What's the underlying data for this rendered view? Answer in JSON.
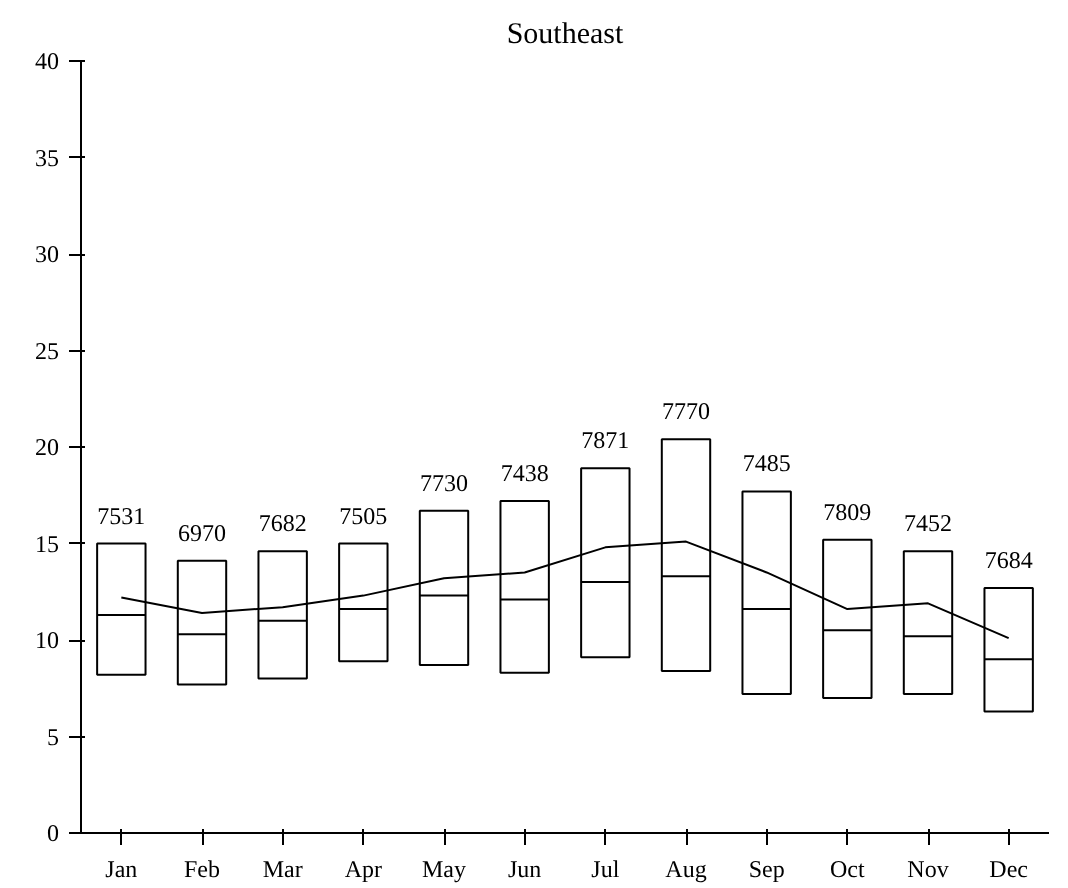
{
  "chart_data": {
    "type": "box",
    "title": "Southeast",
    "color": "#000000",
    "categories": [
      "Jan",
      "Feb",
      "Mar",
      "Apr",
      "May",
      "Jun",
      "Jul",
      "Aug",
      "Sep",
      "Oct",
      "Nov",
      "Dec"
    ],
    "boxes": [
      {
        "low": 8.2,
        "q1": 8.2,
        "median": 11.3,
        "q3": 15.0,
        "high": 15.0
      },
      {
        "low": 7.7,
        "q1": 7.7,
        "median": 10.3,
        "q3": 14.1,
        "high": 14.1
      },
      {
        "low": 8.0,
        "q1": 8.0,
        "median": 11.0,
        "q3": 14.6,
        "high": 14.6
      },
      {
        "low": 8.9,
        "q1": 8.9,
        "median": 11.6,
        "q3": 15.0,
        "high": 15.0
      },
      {
        "low": 8.7,
        "q1": 8.7,
        "median": 12.3,
        "q3": 16.7,
        "high": 16.7
      },
      {
        "low": 8.3,
        "q1": 8.3,
        "median": 12.1,
        "q3": 17.2,
        "high": 17.2
      },
      {
        "low": 9.1,
        "q1": 9.1,
        "median": 13.0,
        "q3": 18.9,
        "high": 18.9
      },
      {
        "low": 8.4,
        "q1": 8.4,
        "median": 13.3,
        "q3": 20.4,
        "high": 20.4
      },
      {
        "low": 7.2,
        "q1": 7.2,
        "median": 11.6,
        "q3": 17.7,
        "high": 17.7
      },
      {
        "low": 7.0,
        "q1": 7.0,
        "median": 10.5,
        "q3": 15.2,
        "high": 15.2
      },
      {
        "low": 7.2,
        "q1": 7.2,
        "median": 10.2,
        "q3": 14.6,
        "high": 14.6
      },
      {
        "low": 6.3,
        "q1": 6.3,
        "median": 9.0,
        "q3": 12.7,
        "high": 12.7
      }
    ],
    "series": [
      {
        "type": "line",
        "color": "#000000",
        "values": [
          12.2,
          11.4,
          11.7,
          12.3,
          13.2,
          13.5,
          14.8,
          15.1,
          13.5,
          11.6,
          11.9,
          10.1
        ]
      }
    ],
    "annotations": [
      {
        "text": "7531",
        "x": "Jan",
        "y": 15.0
      },
      {
        "text": "6970",
        "x": "Feb",
        "y": 14.1
      },
      {
        "text": "7682",
        "x": "Mar",
        "y": 14.6
      },
      {
        "text": "7505",
        "x": "Apr",
        "y": 15.0
      },
      {
        "text": "7730",
        "x": "May",
        "y": 16.7
      },
      {
        "text": "7438",
        "x": "Jun",
        "y": 17.2
      },
      {
        "text": "7871",
        "x": "Jul",
        "y": 18.9
      },
      {
        "text": "7770",
        "x": "Aug",
        "y": 20.4
      },
      {
        "text": "7485",
        "x": "Sep",
        "y": 17.7
      },
      {
        "text": "7809",
        "x": "Oct",
        "y": 15.2
      },
      {
        "text": "7452",
        "x": "Nov",
        "y": 14.6
      },
      {
        "text": "7684",
        "x": "Dec",
        "y": 12.7
      }
    ],
    "ylim": [
      0,
      40
    ],
    "yticks": [
      0,
      5,
      10,
      15,
      20,
      25,
      30,
      35,
      40
    ],
    "grid": false
  }
}
